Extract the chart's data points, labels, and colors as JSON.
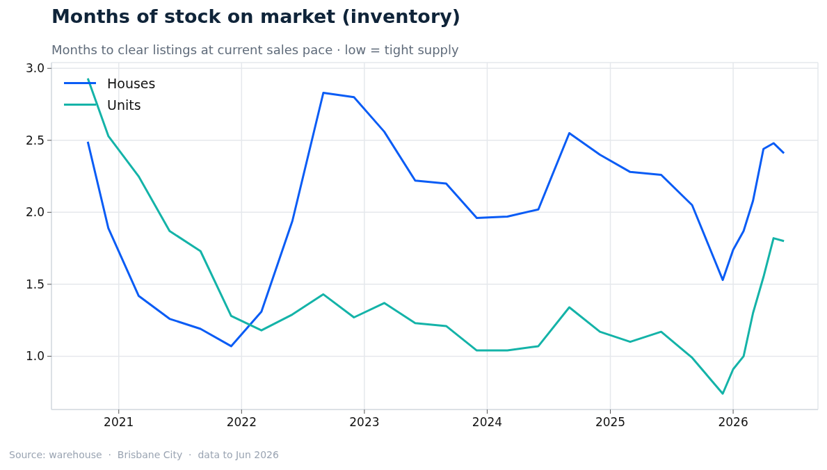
{
  "chart_data": {
    "type": "line",
    "title": "Months of stock on market (inventory)",
    "subtitle": "Months to clear listings at current sales pace · low = tight supply",
    "annotations": [
      "Source: warehouse  ·  Brisbane City  ·  data to Jun 2026"
    ],
    "x": [
      "2020-10",
      "2020-12",
      "2021-03",
      "2021-06",
      "2021-09",
      "2021-12",
      "2022-03",
      "2022-06",
      "2022-09",
      "2022-12",
      "2023-03",
      "2023-06",
      "2023-09",
      "2023-12",
      "2024-03",
      "2024-06",
      "2024-09",
      "2024-12",
      "2025-03",
      "2025-06",
      "2025-09",
      "2025-12",
      "2026-01",
      "2026-02",
      "2026-03",
      "2026-04",
      "2026-05",
      "2026-06"
    ],
    "series": [
      {
        "name": "Houses",
        "color": "#0a5cf5",
        "values": [
          2.49,
          1.89,
          1.42,
          1.26,
          1.19,
          1.07,
          1.31,
          1.94,
          2.83,
          2.8,
          2.56,
          2.22,
          2.2,
          1.96,
          1.97,
          2.02,
          2.55,
          2.4,
          2.28,
          2.26,
          2.05,
          1.53,
          1.74,
          1.87,
          2.08,
          2.44,
          2.48,
          2.41
        ]
      },
      {
        "name": "Units",
        "color": "#14b3a8",
        "values": [
          2.93,
          2.53,
          2.25,
          1.87,
          1.73,
          1.28,
          1.18,
          1.29,
          1.43,
          1.27,
          1.37,
          1.23,
          1.21,
          1.04,
          1.04,
          1.07,
          1.34,
          1.17,
          1.1,
          1.17,
          0.99,
          0.74,
          0.91,
          1.0,
          1.3,
          1.55,
          1.82,
          1.8
        ]
      }
    ],
    "xlim": [
      "2020-06-15",
      "2026-09-10"
    ],
    "xticks": [
      "2021",
      "2022",
      "2023",
      "2024",
      "2025",
      "2026"
    ],
    "ylim": [
      0.63,
      3.04
    ],
    "yticks": [
      {
        "value": 1,
        "label": "1.0"
      },
      {
        "value": 1.5,
        "label": "1.5"
      },
      {
        "value": 2,
        "label": "2.0"
      },
      {
        "value": 2.5,
        "label": "2.5"
      },
      {
        "value": 3,
        "label": "3.0"
      }
    ],
    "grid": true,
    "legend": "top left",
    "marker": "none",
    "line_style": "solid"
  }
}
